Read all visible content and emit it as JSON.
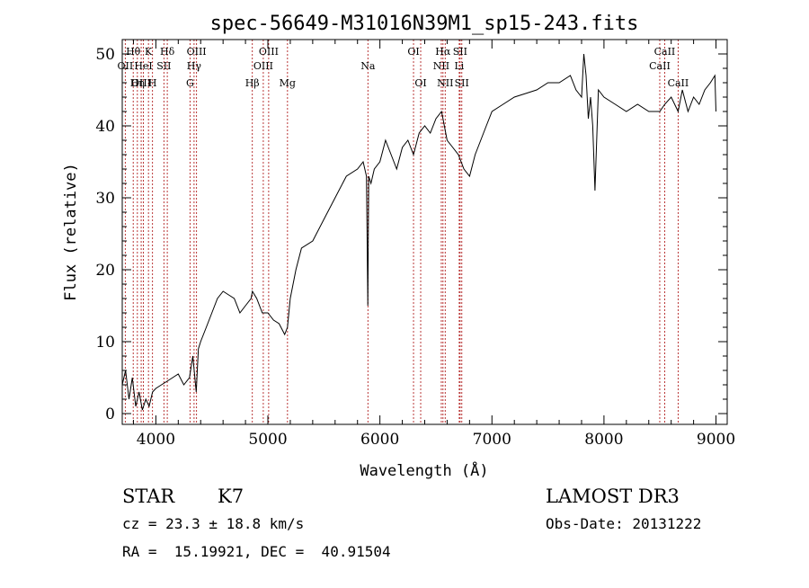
{
  "chart_data": {
    "type": "line",
    "title": "spec-56649-M31016N39M1_sp15-243.fits",
    "xlabel": "Wavelength (Å)",
    "ylabel": "Flux (relative)",
    "xlim": [
      3700,
      9100
    ],
    "ylim": [
      -1.5,
      52
    ],
    "xticks": [
      4000,
      5000,
      6000,
      7000,
      8000,
      9000
    ],
    "xtick_labels": [
      "4000",
      "5000",
      "6000",
      "7000",
      "8000",
      "9000"
    ],
    "yticks": [
      0,
      10,
      20,
      30,
      40,
      50
    ],
    "ytick_labels": [
      "0",
      "10",
      "20",
      "30",
      "40",
      "50"
    ],
    "series": [
      {
        "name": "spectrum",
        "x": [
          3700,
          3730,
          3760,
          3790,
          3820,
          3850,
          3880,
          3910,
          3940,
          3970,
          4000,
          4050,
          4100,
          4150,
          4200,
          4250,
          4300,
          4330,
          4360,
          4380,
          4400,
          4450,
          4500,
          4550,
          4600,
          4650,
          4700,
          4750,
          4800,
          4850,
          4862,
          4900,
          4950,
          5000,
          5050,
          5100,
          5150,
          5175,
          5200,
          5250,
          5300,
          5400,
          5500,
          5600,
          5700,
          5800,
          5850,
          5880,
          5892,
          5900,
          5920,
          5950,
          6000,
          6050,
          6100,
          6150,
          6200,
          6250,
          6300,
          6350,
          6400,
          6450,
          6500,
          6550,
          6563,
          6600,
          6650,
          6700,
          6750,
          6800,
          6850,
          6900,
          6950,
          7000,
          7100,
          7200,
          7300,
          7400,
          7500,
          7600,
          7700,
          7750,
          7800,
          7820,
          7840,
          7860,
          7880,
          7900,
          7920,
          7950,
          8000,
          8100,
          8200,
          8300,
          8400,
          8498,
          8542,
          8600,
          8662,
          8700,
          8750,
          8800,
          8850,
          8900,
          8950,
          8990,
          9000
        ],
        "y": [
          4,
          6,
          2,
          5,
          1,
          3,
          0.5,
          2,
          1,
          3,
          3.5,
          4,
          4.5,
          5,
          5.5,
          4,
          5,
          8,
          3,
          9,
          10,
          12,
          14,
          16,
          17,
          16.5,
          16,
          14,
          15,
          16,
          17,
          16,
          14,
          14,
          13,
          12.5,
          11,
          12,
          16,
          20,
          23,
          24,
          27,
          30,
          33,
          34,
          35,
          33,
          15,
          33,
          32,
          34,
          35,
          38,
          36,
          34,
          37,
          38,
          36,
          39,
          40,
          39,
          41,
          42,
          41,
          38,
          37,
          36,
          34,
          33,
          36,
          38,
          40,
          42,
          43,
          44,
          44.5,
          45,
          46,
          46,
          47,
          45,
          44,
          50,
          47,
          41,
          44,
          40,
          31,
          45,
          44,
          43,
          42,
          43,
          42,
          42,
          43,
          44,
          42,
          45,
          42,
          44,
          43,
          45,
          46,
          47,
          42
        ]
      }
    ],
    "line_markers": [
      {
        "label": "Hθ",
        "wavelength": 3798,
        "row": 1
      },
      {
        "label": "OII",
        "wavelength": 3727,
        "row": 2
      },
      {
        "label": "OIII",
        "wavelength": 3869,
        "row": 3
      },
      {
        "label": "K",
        "wavelength": 3934,
        "row": 1
      },
      {
        "label": "HeI",
        "wavelength": 3889,
        "row": 2
      },
      {
        "label": "Hη",
        "wavelength": 3835,
        "row": 3
      },
      {
        "label": "H",
        "wavelength": 3970,
        "row": 3
      },
      {
        "label": "Hδ",
        "wavelength": 4102,
        "row": 1
      },
      {
        "label": "SII",
        "wavelength": 4072,
        "row": 2
      },
      {
        "label": "OIII",
        "wavelength": 4363,
        "row": 1
      },
      {
        "label": "Hγ",
        "wavelength": 4341,
        "row": 2
      },
      {
        "label": "G",
        "wavelength": 4305,
        "row": 3
      },
      {
        "label": "OIII",
        "wavelength": 5007,
        "row": 1
      },
      {
        "label": "OIII",
        "wavelength": 4959,
        "row": 2
      },
      {
        "label": "Hβ",
        "wavelength": 4861,
        "row": 3
      },
      {
        "label": "Mg",
        "wavelength": 5175,
        "row": 3
      },
      {
        "label": "Na",
        "wavelength": 5893,
        "row": 2
      },
      {
        "label": "OI",
        "wavelength": 6300,
        "row": 1
      },
      {
        "label": "OI",
        "wavelength": 6364,
        "row": 3
      },
      {
        "label": "Hα",
        "wavelength": 6563,
        "row": 1
      },
      {
        "label": "SII",
        "wavelength": 6716,
        "row": 1
      },
      {
        "label": "NII",
        "wavelength": 6548,
        "row": 2
      },
      {
        "label": "Li",
        "wavelength": 6708,
        "row": 2
      },
      {
        "label": "NII",
        "wavelength": 6583,
        "row": 3
      },
      {
        "label": "SII",
        "wavelength": 6731,
        "row": 3
      },
      {
        "label": "CaII",
        "wavelength": 8542,
        "row": 1
      },
      {
        "label": "CaII",
        "wavelength": 8498,
        "row": 2
      },
      {
        "label": "CaII",
        "wavelength": 8662,
        "row": 3
      }
    ]
  },
  "info": {
    "class": "STAR",
    "subclass": "K7",
    "survey": "LAMOST DR3",
    "cz": "cz = 23.3 ± 18.8 km/s",
    "obs_date": "Obs-Date: 20131222",
    "coords": "RA =  15.19921, DEC =  40.91504"
  },
  "colors": {
    "line_marker": "#b22222",
    "spectrum": "#000000"
  }
}
